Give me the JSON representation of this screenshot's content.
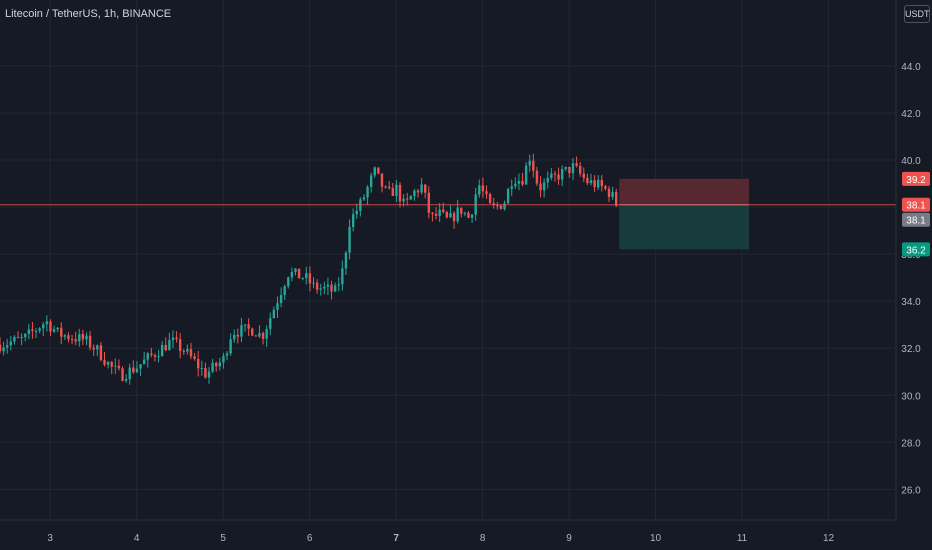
{
  "header": {
    "title": "Litecoin / TetherUS, 1h, BINANCE",
    "currency_button": "USDT"
  },
  "colors": {
    "background": "#161a25",
    "grid": "#232733",
    "up": "#26a69a",
    "down": "#ef5350",
    "text": "#b2b5be",
    "stop_zone": "#5d2a33",
    "target_zone": "#18403e",
    "last_price_line": "#ef5350",
    "entry_tag": "#787b86",
    "target_tag": "#089981"
  },
  "chart_data": {
    "type": "candlestick",
    "symbol": "Litecoin / TetherUS",
    "interval": "1h",
    "exchange": "BINANCE",
    "currency": "USDT",
    "ylim": [
      24.7,
      46.8
    ],
    "y_ticks": [
      "26.0",
      "28.0",
      "30.0",
      "32.0",
      "34.0",
      "36.0",
      "38.0",
      "40.0",
      "42.0",
      "44.0"
    ],
    "x_ticks": [
      "3",
      "4",
      "5",
      "6",
      "7",
      "8",
      "9",
      "10",
      "11",
      "12"
    ],
    "xlim": [
      2.42,
      12.78
    ],
    "grid": true,
    "last_price": 38.1,
    "price_labels": [
      {
        "text": "39.2",
        "value": 39.2,
        "role": "stop"
      },
      {
        "text": "38.1",
        "value": 38.1,
        "role": "last-price"
      },
      {
        "text": "38.1",
        "value": 38.1,
        "role": "entry"
      },
      {
        "text": "36.2",
        "value": 36.2,
        "role": "target"
      }
    ],
    "position": {
      "side": "short",
      "entry": 38.1,
      "stop": 39.2,
      "target": 36.2,
      "start_day": 9.58,
      "end_day": 11.08
    },
    "candles_interval_hours": 1,
    "candle_anchors": [
      [
        2.42,
        32.15
      ],
      [
        2.7,
        32.4
      ],
      [
        2.95,
        33.15
      ],
      [
        3.1,
        32.6
      ],
      [
        3.4,
        32.35
      ],
      [
        3.55,
        31.9
      ],
      [
        3.7,
        31.2
      ],
      [
        3.82,
        30.85
      ],
      [
        4.0,
        31.2
      ],
      [
        4.25,
        31.9
      ],
      [
        4.4,
        32.3
      ],
      [
        4.55,
        31.9
      ],
      [
        4.8,
        30.9
      ],
      [
        5.0,
        31.5
      ],
      [
        5.1,
        32.7
      ],
      [
        5.35,
        32.8
      ],
      [
        5.45,
        32.5
      ],
      [
        5.6,
        33.8
      ],
      [
        5.75,
        35.2
      ],
      [
        5.95,
        35.0
      ],
      [
        6.05,
        34.6
      ],
      [
        6.2,
        34.5
      ],
      [
        6.3,
        34.4
      ],
      [
        6.4,
        35.5
      ],
      [
        6.45,
        37.3
      ],
      [
        6.6,
        38.2
      ],
      [
        6.75,
        39.5
      ],
      [
        6.9,
        38.5
      ],
      [
        7.0,
        38.8
      ],
      [
        7.1,
        38.0
      ],
      [
        7.2,
        38.6
      ],
      [
        7.3,
        38.9
      ],
      [
        7.4,
        37.5
      ],
      [
        7.5,
        37.7
      ],
      [
        7.6,
        37.4
      ],
      [
        7.75,
        37.9
      ],
      [
        7.85,
        37.5
      ],
      [
        7.95,
        39.0
      ],
      [
        8.1,
        37.9
      ],
      [
        8.25,
        38.2
      ],
      [
        8.35,
        39.3
      ],
      [
        8.45,
        39.1
      ],
      [
        8.55,
        40.2
      ],
      [
        8.65,
        38.8
      ],
      [
        8.85,
        39.3
      ],
      [
        9.05,
        39.7
      ],
      [
        9.2,
        39.1
      ],
      [
        9.35,
        38.9
      ],
      [
        9.48,
        38.6
      ],
      [
        9.55,
        38.1
      ]
    ]
  }
}
